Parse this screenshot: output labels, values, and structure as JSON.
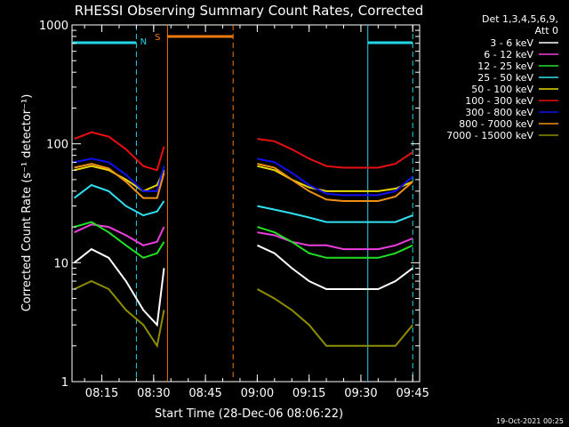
{
  "chart_data": {
    "type": "line",
    "title": "RHESSI Observing Summary Count Rates, Corrected",
    "xlabel": "Start Time (28-Dec-06 08:06:22)",
    "ylabel": "Corrected Count Rate (s⁻¹ detector⁻¹)",
    "y_scale": "log",
    "ylim": [
      1,
      1000
    ],
    "xlim": [
      "08:06:22",
      "09:47:00"
    ],
    "x_ticks": [
      "08:15",
      "08:30",
      "08:45",
      "09:00",
      "09:15",
      "09:30",
      "09:45"
    ],
    "y_ticks": [
      "1",
      "10",
      "100",
      "1000"
    ],
    "legend": {
      "header": [
        "Det 1,3,4,5,6,9,",
        "Att 0"
      ],
      "placement": "right"
    },
    "data_gap": [
      "08:53:00",
      "09:00:30"
    ],
    "markers": {
      "night_label": "N",
      "saa_label": "S",
      "night_intervals": [
        [
          "08:06:22",
          "08:25:00"
        ],
        [
          "09:32:00",
          "09:45:00"
        ]
      ],
      "saa_interval": [
        "08:34:00",
        "08:53:00"
      ],
      "night_color": "#22d6e8",
      "saa_color": "#f07a10"
    },
    "x": [
      "08:07",
      "08:12",
      "08:17",
      "08:22",
      "08:27",
      "08:31",
      "08:33",
      "09:00",
      "09:05",
      "09:10",
      "09:15",
      "09:20",
      "09:25",
      "09:30",
      "09:35",
      "09:40",
      "09:45"
    ],
    "series": [
      {
        "name": "3 - 6 keV",
        "color": "#ffffff",
        "values": [
          10,
          13,
          11,
          7,
          4,
          3,
          9,
          14,
          12,
          9,
          7,
          6,
          6,
          6,
          6,
          7,
          9
        ]
      },
      {
        "name": "6 - 12 keV",
        "color": "#ee3ee0",
        "values": [
          18,
          21,
          20,
          17,
          14,
          15,
          20,
          18,
          17,
          15,
          14,
          14,
          13,
          13,
          13,
          14,
          16
        ]
      },
      {
        "name": "12 - 25 keV",
        "color": "#22e022",
        "values": [
          20,
          22,
          18,
          14,
          11,
          12,
          15,
          20,
          18,
          15,
          12,
          11,
          11,
          11,
          11,
          12,
          14
        ]
      },
      {
        "name": "25 - 50 keV",
        "color": "#30e0f0",
        "values": [
          35,
          45,
          40,
          30,
          25,
          27,
          33,
          30,
          28,
          26,
          24,
          22,
          22,
          22,
          22,
          22,
          25
        ]
      },
      {
        "name": "50 - 100 keV",
        "color": "#e8d800",
        "values": [
          60,
          65,
          60,
          50,
          40,
          45,
          60,
          65,
          60,
          50,
          43,
          40,
          40,
          40,
          40,
          42,
          48
        ]
      },
      {
        "name": "100 - 300 keV",
        "color": "#e81010",
        "values": [
          110,
          125,
          115,
          90,
          65,
          60,
          95,
          110,
          105,
          90,
          75,
          65,
          63,
          63,
          63,
          68,
          85
        ]
      },
      {
        "name": "300 - 800 keV",
        "color": "#1010f0",
        "values": [
          70,
          75,
          70,
          55,
          40,
          40,
          65,
          75,
          70,
          57,
          45,
          38,
          37,
          37,
          37,
          40,
          53
        ]
      },
      {
        "name": "800 - 7000 keV",
        "color": "#f09018",
        "values": [
          63,
          68,
          62,
          48,
          35,
          35,
          57,
          68,
          63,
          50,
          40,
          34,
          33,
          33,
          33,
          36,
          48
        ]
      },
      {
        "name": "7000 - 15000 keV",
        "color": "#8e8e00",
        "values": [
          6,
          7,
          6,
          4,
          3,
          2,
          4,
          6,
          5,
          4,
          3,
          2,
          2,
          2,
          2,
          2,
          3
        ]
      }
    ]
  },
  "footer": {
    "date": "19-Oct-2021 00:25"
  }
}
